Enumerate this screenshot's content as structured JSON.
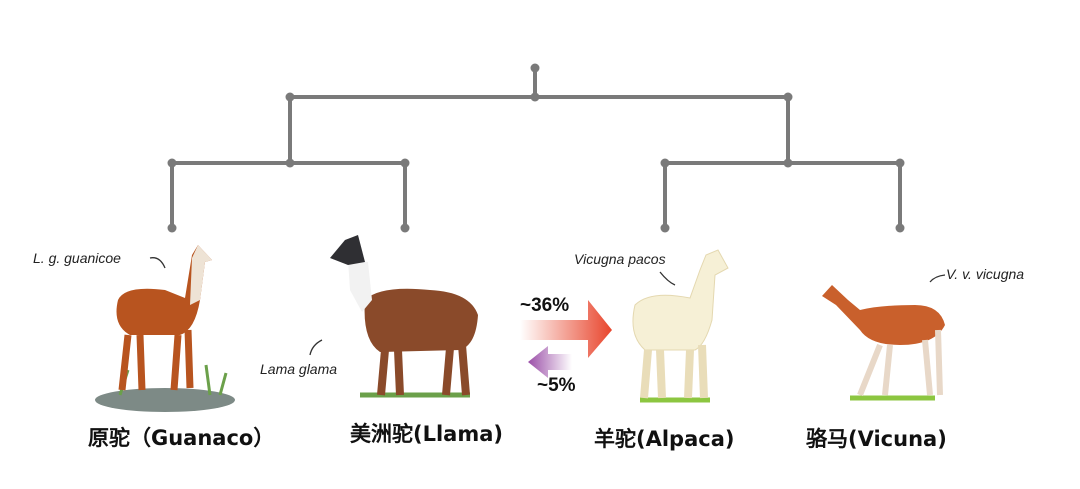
{
  "taxa": [
    {
      "common": "原驼（Guanaco）",
      "scientific": "L. g. guanicoe",
      "body_color": "#b8541f"
    },
    {
      "common": "美洲驼(Llama)",
      "scientific": "Lama glama",
      "body_color": "#8a4a2a"
    },
    {
      "common": "羊驼(Alpaca)",
      "scientific": "Vicugna pacos",
      "body_color": "#f6f0d6"
    },
    {
      "common": "骆马(Vicuna)",
      "scientific": "V. v. vicugna",
      "body_color": "#c9602c"
    }
  ],
  "gene_flow": {
    "llama_to_alpaca": "~36%",
    "alpaca_to_llama": "~5%",
    "forward_color": "#e8452c",
    "reverse_color": "#9b4fa8"
  },
  "tree_color": "#7a7a7a"
}
